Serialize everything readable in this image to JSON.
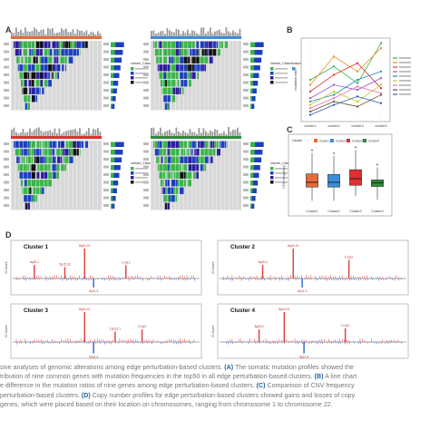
{
  "figure": {
    "panel_labels": [
      "A",
      "B",
      "C",
      "D"
    ]
  },
  "chart_data": [
    {
      "panel": "A",
      "type": "heatmap",
      "subpanels": 4,
      "rows_per_subpanel": 9,
      "legend_heading": "Variant_Classification",
      "colors": {
        "missense": "#3cb44b",
        "nonsense": "#1d3fbf",
        "frameshift": "#2b1d9e",
        "multi_hit": "#111111",
        "background": "#d8d8d8",
        "cluster_1": "#e86a3a",
        "cluster_2": "#3b8ed8",
        "cluster_3": "#e03030",
        "cluster_4": "#2e8b3a"
      }
    },
    {
      "panel": "B",
      "type": "line",
      "categories": [
        "cluster1",
        "cluster2",
        "cluster3",
        "cluster4"
      ],
      "ylabel": "mutation ratio",
      "ylim": [
        0,
        0.5
      ],
      "series": [
        {
          "values": [
            0.25,
            0.33,
            0.23,
            0.47
          ],
          "color": "#3ab24a"
        },
        {
          "values": [
            0.22,
            0.39,
            0.3,
            0.44
          ],
          "color": "#f08c28"
        },
        {
          "values": [
            0.18,
            0.28,
            0.35,
            0.2
          ],
          "color": "#e03030"
        },
        {
          "values": [
            0.14,
            0.22,
            0.19,
            0.26
          ],
          "color": "#9a56c6"
        },
        {
          "values": [
            0.12,
            0.16,
            0.25,
            0.3
          ],
          "color": "#1c8fb7"
        },
        {
          "values": [
            0.1,
            0.18,
            0.12,
            0.22
          ],
          "color": "#c8c820"
        },
        {
          "values": [
            0.08,
            0.14,
            0.21,
            0.17
          ],
          "color": "#e56fb2"
        },
        {
          "values": [
            0.06,
            0.12,
            0.09,
            0.16
          ],
          "color": "#6b4a2a"
        },
        {
          "values": [
            0.04,
            0.1,
            0.15,
            0.11
          ],
          "color": "#2a5db0"
        }
      ]
    },
    {
      "panel": "C",
      "type": "box",
      "categories": [
        "Cluster1",
        "Cluster2",
        "Cluster3",
        "Cluster4"
      ],
      "legend_title": "Cluster",
      "ylabel": "CNV frequency",
      "ylim": [
        0,
        1
      ],
      "boxes": [
        {
          "min": 0.1,
          "q1": 0.33,
          "median": 0.41,
          "q3": 0.55,
          "max": 0.9,
          "color": "#e86a3a"
        },
        {
          "min": 0.1,
          "q1": 0.33,
          "median": 0.41,
          "q3": 0.54,
          "max": 0.85,
          "color": "#3b8ed8"
        },
        {
          "min": 0.18,
          "q1": 0.36,
          "median": 0.47,
          "q3": 0.62,
          "max": 0.95,
          "color": "#e03030"
        },
        {
          "min": 0.12,
          "q1": 0.34,
          "median": 0.4,
          "q3": 0.45,
          "max": 0.66,
          "color": "#2e8b3a"
        }
      ]
    },
    {
      "panel": "D",
      "type": "bar",
      "ylabel": "G-Score",
      "clusters": [
        {
          "title": "Cluster 1",
          "peaks": [
            {
              "pos": 0.1,
              "value": 0.45,
              "label": "3q26.2"
            },
            {
              "pos": 0.27,
              "value": 0.38,
              "label": "5p15.33"
            },
            {
              "pos": 0.38,
              "value": 1.0,
              "label": "8q24.21"
            },
            {
              "pos": 0.61,
              "value": 0.44,
              "label": "17q12"
            },
            {
              "pos": 0.43,
              "value": -0.3,
              "label": "9p21.3"
            }
          ]
        },
        {
          "title": "Cluster 2",
          "peaks": [
            {
              "pos": 0.22,
              "value": 0.45,
              "label": "3q26.2"
            },
            {
              "pos": 0.39,
              "value": 1.0,
              "label": "8q24.21"
            },
            {
              "pos": 0.7,
              "value": 0.62,
              "label": "17q12"
            },
            {
              "pos": 0.44,
              "value": -0.3,
              "label": "9p21.3"
            }
          ]
        },
        {
          "title": "Cluster 3",
          "peaks": [
            {
              "pos": 0.38,
              "value": 1.0,
              "label": "8q24.21"
            },
            {
              "pos": 0.55,
              "value": 0.35,
              "label": "12p12.1"
            },
            {
              "pos": 0.7,
              "value": 0.42,
              "label": "17q12"
            },
            {
              "pos": 0.43,
              "value": -0.38,
              "label": "9p21.3"
            }
          ]
        },
        {
          "title": "Cluster 4",
          "peaks": [
            {
              "pos": 0.2,
              "value": 0.42,
              "label": "3q26.2"
            },
            {
              "pos": 0.34,
              "value": 1.0,
              "label": "8q24.21"
            },
            {
              "pos": 0.68,
              "value": 0.46,
              "label": "17q12"
            },
            {
              "pos": 0.45,
              "value": -0.38,
              "label": "9p21.3"
            }
          ]
        }
      ]
    }
  ],
  "caption": {
    "line1_a": "sive analyses of genomic alterations among edge perturbation-based clusters. ",
    "line1_b": "(A)",
    "line1_c": " The somatic mutation profiles showed the",
    "line2": "tribution of nine common genes with mutation frequencies in the top50 in all edge perturbation-based clusters. ",
    "line2_b": "(B)",
    "line2_c": " A line chart",
    "line3_a": "e difference in the mutation ratios of nine genes among edge perturbation-based clusters. ",
    "line3_b": "(C)",
    "line3_c": " Comparison of CNV frequency",
    "line4_a": "perturbation-based clusters. ",
    "line4_b": "(D)",
    "line4_c": " Copy number profiles for edge perturbation-based clusters showed gains and losses of copy",
    "line5": "genes, which were placed based on their location on chromosomes, ranging from chromosome 1 to chromosome 22."
  }
}
